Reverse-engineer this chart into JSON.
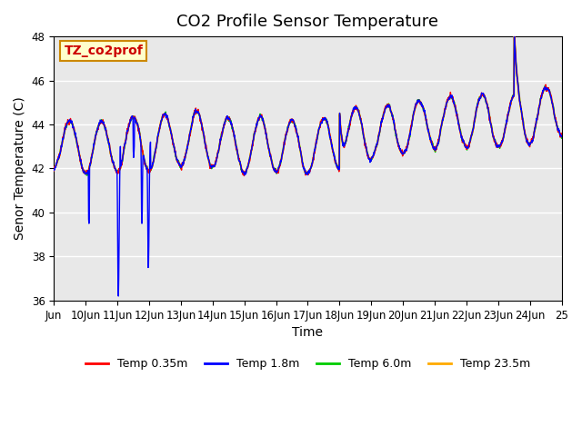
{
  "title": "CO2 Profile Sensor Temperature",
  "xlabel": "Time",
  "ylabel": "Senor Temperature (C)",
  "annotation_text": "TZ_co2prof",
  "annotation_facecolor": "#ffffcc",
  "annotation_edgecolor": "#cc8800",
  "annotation_textcolor": "#cc0000",
  "ylim": [
    36,
    48
  ],
  "yticks": [
    36,
    38,
    40,
    42,
    44,
    46,
    48
  ],
  "xtick_labels": [
    "Jun",
    "10Jun",
    "11Jun",
    "12Jun",
    "13Jun",
    "14Jun",
    "15Jun",
    "16Jun",
    "17Jun",
    "18Jun",
    "19Jun",
    "20Jun",
    "21Jun",
    "22Jun",
    "23Jun",
    "24Jun",
    "25"
  ],
  "plot_bgcolor": "#e8e8e8",
  "grid_color": "#ffffff",
  "line_colors": {
    "temp035": "#ff0000",
    "temp18": "#0000ff",
    "temp60": "#00cc00",
    "temp235": "#ffaa00"
  },
  "line_widths": {
    "temp035": 1.0,
    "temp18": 1.0,
    "temp60": 1.0,
    "temp235": 1.5
  },
  "legend_labels": [
    "Temp 0.35m",
    "Temp 1.8m",
    "Temp 6.0m",
    "Temp 23.5m"
  ],
  "legend_colors": [
    "#ff0000",
    "#0000ff",
    "#00cc00",
    "#ffaa00"
  ],
  "title_fontsize": 13,
  "label_fontsize": 10,
  "tick_fontsize": 8.5,
  "n_days": 16
}
